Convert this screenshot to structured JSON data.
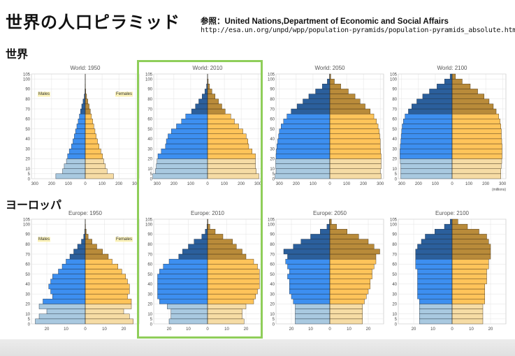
{
  "header": {
    "title": "世界の人口ピラミッド",
    "source_line1": "参照：United Nations,Department of Economic and Social Affairs",
    "source_line2": "http://esa.un.org/unpd/wpp/population-pyramids/population-pyramids_absolute.htm"
  },
  "sections": {
    "world": "世界",
    "europe": "ヨーロッパ"
  },
  "colors": {
    "male_young": "#a9c9e0",
    "male_mid": "#3d8ff0",
    "male_old": "#2b5f9c",
    "female_young": "#f6dca5",
    "female_mid": "#ffc45a",
    "female_old": "#b98b3a",
    "highlight": "#8fce5a"
  },
  "chart_data": [
    {
      "type": "bar",
      "title": "World: 1950",
      "age_groups": [
        "0",
        "5",
        "10",
        "15",
        "20",
        "25",
        "30",
        "35",
        "40",
        "45",
        "50",
        "55",
        "60",
        "65",
        "70",
        "75",
        "80",
        "85",
        "90",
        "95",
        "100"
      ],
      "y_ticks": [
        "0",
        "5",
        "10",
        "20",
        "30",
        "40",
        "50",
        "60",
        "70",
        "80",
        "90",
        "100",
        "105"
      ],
      "x_ticks": [
        "300",
        "200",
        "100",
        "0",
        "100",
        "200",
        "300"
      ],
      "xlim": [
        -320,
        320
      ],
      "legend": {
        "male": "Males",
        "female": "Females"
      },
      "series": [
        {
          "values": [
            175,
            135,
            125,
            112,
            105,
            95,
            82,
            73,
            65,
            58,
            50,
            42,
            35,
            28,
            21,
            13,
            6,
            2,
            0.8,
            0.2,
            0.05
          ]
        },
        {
          "values": [
            168,
            130,
            120,
            110,
            103,
            93,
            82,
            73,
            65,
            58,
            51,
            44,
            37,
            30,
            23,
            15,
            8,
            3,
            1,
            0.3,
            0.05
          ]
        }
      ]
    },
    {
      "type": "bar",
      "title": "World: 2010",
      "unit": "",
      "age_groups": [
        "0",
        "5",
        "10",
        "15",
        "20",
        "25",
        "30",
        "35",
        "40",
        "45",
        "50",
        "55",
        "60",
        "65",
        "70",
        "75",
        "80",
        "85",
        "90",
        "95",
        "100"
      ],
      "y_ticks": [
        "0",
        "5",
        "10",
        "20",
        "30",
        "40",
        "50",
        "60",
        "70",
        "80",
        "90",
        "100",
        "105"
      ],
      "x_ticks": [
        "300",
        "200",
        "100",
        "0",
        "100",
        "200",
        "300"
      ],
      "xlim": [
        -320,
        320
      ],
      "series": [
        {
          "values": [
            325,
            310,
            305,
            300,
            295,
            275,
            250,
            245,
            235,
            215,
            185,
            155,
            130,
            95,
            72,
            52,
            32,
            16,
            6,
            1.5,
            0.2
          ]
        },
        {
          "values": [
            305,
            290,
            285,
            285,
            285,
            265,
            245,
            240,
            230,
            210,
            185,
            160,
            138,
            105,
            85,
            65,
            45,
            26,
            12,
            4,
            0.6
          ]
        }
      ]
    },
    {
      "type": "bar",
      "title": "World: 2050",
      "age_groups": [
        "0",
        "5",
        "10",
        "15",
        "20",
        "25",
        "30",
        "35",
        "40",
        "45",
        "50",
        "55",
        "60",
        "65",
        "70",
        "75",
        "80",
        "85",
        "90",
        "95",
        "100"
      ],
      "y_ticks": [
        "0",
        "5",
        "10",
        "20",
        "30",
        "40",
        "50",
        "60",
        "70",
        "80",
        "90",
        "100",
        "105"
      ],
      "x_ticks": [
        "300",
        "200",
        "100",
        "0",
        "100",
        "200",
        "300"
      ],
      "xlim": [
        -320,
        320
      ],
      "series": [
        {
          "values": [
            325,
            320,
            322,
            322,
            320,
            318,
            315,
            310,
            305,
            300,
            290,
            275,
            255,
            230,
            195,
            160,
            125,
            85,
            45,
            15,
            2
          ]
        },
        {
          "values": [
            305,
            300,
            305,
            305,
            305,
            302,
            300,
            300,
            297,
            294,
            287,
            277,
            262,
            240,
            210,
            180,
            150,
            110,
            65,
            27,
            5
          ]
        }
      ]
    },
    {
      "type": "bar",
      "title": "World: 2100",
      "unit": "(millions)",
      "age_groups": [
        "0",
        "5",
        "10",
        "15",
        "20",
        "25",
        "30",
        "35",
        "40",
        "45",
        "50",
        "55",
        "60",
        "65",
        "70",
        "75",
        "80",
        "85",
        "90",
        "95",
        "100"
      ],
      "y_ticks": [
        "0",
        "5",
        "10",
        "20",
        "30",
        "40",
        "50",
        "60",
        "70",
        "80",
        "90",
        "100",
        "105"
      ],
      "x_ticks": [
        "300",
        "200",
        "100",
        "0",
        "100",
        "200",
        "300"
      ],
      "xlim": [
        -320,
        320
      ],
      "series": [
        {
          "values": [
            305,
            305,
            305,
            308,
            310,
            310,
            308,
            305,
            303,
            300,
            297,
            290,
            280,
            260,
            240,
            210,
            175,
            135,
            90,
            45,
            12
          ]
        },
        {
          "values": [
            290,
            290,
            292,
            295,
            297,
            297,
            297,
            295,
            293,
            293,
            290,
            285,
            277,
            262,
            245,
            220,
            190,
            152,
            108,
            60,
            20
          ]
        }
      ]
    },
    {
      "type": "bar",
      "title": "Europe: 1950",
      "age_groups": [
        "0",
        "5",
        "10",
        "15",
        "20",
        "25",
        "30",
        "35",
        "40",
        "45",
        "50",
        "55",
        "60",
        "65",
        "70",
        "75",
        "80",
        "85",
        "90",
        "95",
        "100"
      ],
      "y_ticks": [
        "0",
        "5",
        "10",
        "20",
        "30",
        "40",
        "50",
        "60",
        "70",
        "80",
        "90",
        "100",
        "105"
      ],
      "x_ticks": [
        "20",
        "10",
        "0",
        "10",
        "20"
      ],
      "xlim": [
        -28,
        28
      ],
      "legend": {
        "male": "Males",
        "female": "Females"
      },
      "series": [
        {
          "values": [
            26,
            24,
            20,
            24,
            22,
            17,
            18,
            19,
            18,
            17,
            14,
            12,
            10,
            8,
            6,
            4,
            2,
            0.8,
            0.3,
            0.1,
            0.02
          ]
        },
        {
          "values": [
            25,
            23,
            20,
            24,
            24,
            22,
            23,
            23,
            22,
            21,
            19,
            17,
            14,
            12,
            9,
            6,
            3.5,
            1.5,
            0.5,
            0.15,
            0.03
          ]
        }
      ]
    },
    {
      "type": "bar",
      "title": "Europe: 2010",
      "age_groups": [
        "0",
        "5",
        "10",
        "15",
        "20",
        "25",
        "30",
        "35",
        "40",
        "45",
        "50",
        "55",
        "60",
        "65",
        "70",
        "75",
        "80",
        "85",
        "90",
        "95",
        "100"
      ],
      "y_ticks": [
        "0",
        "5",
        "10",
        "20",
        "30",
        "40",
        "50",
        "60",
        "70",
        "80",
        "90",
        "100",
        "105"
      ],
      "x_ticks": [
        "20",
        "10",
        "0",
        "10",
        "20"
      ],
      "xlim": [
        -28,
        28
      ],
      "series": [
        {
          "values": [
            20,
            19,
            19,
            21,
            25,
            26,
            26,
            26,
            26,
            26,
            25,
            23,
            20,
            15,
            13,
            10,
            7,
            3,
            1.2,
            0.3,
            0.05
          ]
        },
        {
          "values": [
            19,
            18,
            18,
            20,
            24,
            25,
            26,
            27,
            27,
            27,
            27,
            26,
            24,
            20,
            18,
            15,
            13,
            8,
            4,
            1.2,
            0.2
          ]
        }
      ]
    },
    {
      "type": "bar",
      "title": "Europe: 2050",
      "age_groups": [
        "0",
        "5",
        "10",
        "15",
        "20",
        "25",
        "30",
        "35",
        "40",
        "45",
        "50",
        "55",
        "60",
        "65",
        "70",
        "75",
        "80",
        "85",
        "90",
        "95",
        "100"
      ],
      "y_ticks": [
        "0",
        "5",
        "10",
        "20",
        "30",
        "40",
        "50",
        "60",
        "70",
        "80",
        "90",
        "100",
        "105"
      ],
      "x_ticks": [
        "20",
        "10",
        "0",
        "10",
        "20"
      ],
      "xlim": [
        -28,
        28
      ],
      "series": [
        {
          "values": [
            18,
            18,
            18,
            18,
            19,
            20,
            21,
            21,
            21,
            22,
            21,
            22,
            23,
            22,
            24,
            19,
            15,
            10,
            5,
            1.5,
            0.2
          ]
        },
        {
          "values": [
            17,
            17,
            17,
            17,
            18,
            19,
            20,
            21,
            21,
            22,
            22,
            23,
            24,
            24,
            26,
            23,
            20,
            15,
            9,
            3.5,
            0.8
          ]
        }
      ]
    },
    {
      "type": "bar",
      "title": "Europe: 2100",
      "age_groups": [
        "0",
        "5",
        "10",
        "15",
        "20",
        "25",
        "30",
        "35",
        "40",
        "45",
        "50",
        "55",
        "60",
        "65",
        "70",
        "75",
        "80",
        "85",
        "90",
        "95",
        "100"
      ],
      "y_ticks": [
        "0",
        "5",
        "10",
        "20",
        "30",
        "40",
        "50",
        "60",
        "70",
        "80",
        "90",
        "100",
        "105"
      ],
      "x_ticks": [
        "20",
        "10",
        "0",
        "10",
        "20"
      ],
      "xlim": [
        -28,
        28
      ],
      "series": [
        {
          "values": [
            17,
            17,
            17,
            17,
            17,
            18,
            18,
            18,
            18,
            18,
            18,
            19,
            19,
            19,
            19,
            18,
            16,
            14,
            9,
            4,
            1
          ]
        },
        {
          "values": [
            16,
            16,
            16,
            16,
            17,
            17,
            17,
            17,
            18,
            18,
            18,
            19,
            19,
            20,
            20,
            20,
            19,
            18,
            14,
            8,
            3
          ]
        }
      ]
    }
  ]
}
